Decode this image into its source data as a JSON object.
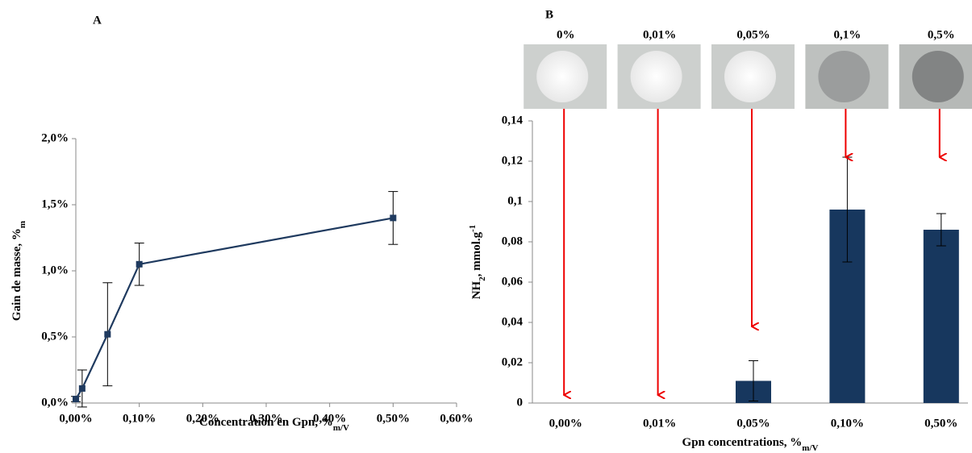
{
  "chart_data": [
    {
      "type": "line",
      "title": "A",
      "x": [
        0,
        0.01,
        0.05,
        0.1,
        0.5
      ],
      "values": [
        0.03,
        0.11,
        0.52,
        1.05,
        1.4
      ],
      "errors": [
        0.02,
        0.14,
        0.39,
        0.16,
        0.2
      ],
      "color": "#1f3a5f",
      "xlim": [
        0,
        0.6
      ],
      "xticks": [
        {
          "value": 0,
          "label": "0,00%"
        },
        {
          "value": 0.1,
          "label": "0,10%"
        },
        {
          "value": 0.2,
          "label": "0,20%"
        },
        {
          "value": 0.3,
          "label": "0,30%"
        },
        {
          "value": 0.4,
          "label": "0,40%"
        },
        {
          "value": 0.5,
          "label": "0,50%"
        },
        {
          "value": 0.6,
          "label": "0,60%"
        }
      ],
      "ylim": [
        0,
        2
      ],
      "yticks": [
        {
          "value": 0,
          "label": "0,0%"
        },
        {
          "value": 0.5,
          "label": "0,5%"
        },
        {
          "value": 1,
          "label": "1,0%"
        },
        {
          "value": 1.5,
          "label": "1,5%"
        },
        {
          "value": 2,
          "label": "2,0%"
        }
      ],
      "x_label": {
        "text": "Concentration en Gpn, %",
        "sub": "m/V"
      },
      "y_label": {
        "text": "Gain de masse, %",
        "sub": "m"
      }
    },
    {
      "type": "bar",
      "title": "B",
      "categories": [
        "0,00%",
        "0,01%",
        "0,05%",
        "0,10%",
        "0,50%"
      ],
      "values": [
        0,
        0,
        0.011,
        0.096,
        0.086
      ],
      "errors": [
        null,
        null,
        0.01,
        0.026,
        0.008
      ],
      "color": "#17375e",
      "ylim": [
        0,
        0.14
      ],
      "yticks": [
        0,
        {
          "value": 0.02,
          "label": "0,02"
        },
        {
          "value": 0.04,
          "label": "0,04"
        },
        {
          "value": 0.06,
          "label": "0,06"
        },
        {
          "value": 0.08,
          "label": "0,08"
        },
        {
          "value": 0.1,
          "label": "0,1"
        },
        {
          "value": 0.12,
          "label": "0,12"
        },
        {
          "value": 0.14,
          "label": "0,14"
        }
      ],
      "image_labels": [
        "0%",
        "0,01%",
        "0,05%",
        "0,1%",
        "0,5%"
      ],
      "x_label": {
        "text": "Gpn concentrations, %",
        "sub": "m/V"
      },
      "y_label": {
        "text": "NH",
        "sub": "2",
        "text2": ", mmol.g",
        "sup": "-1"
      }
    }
  ]
}
